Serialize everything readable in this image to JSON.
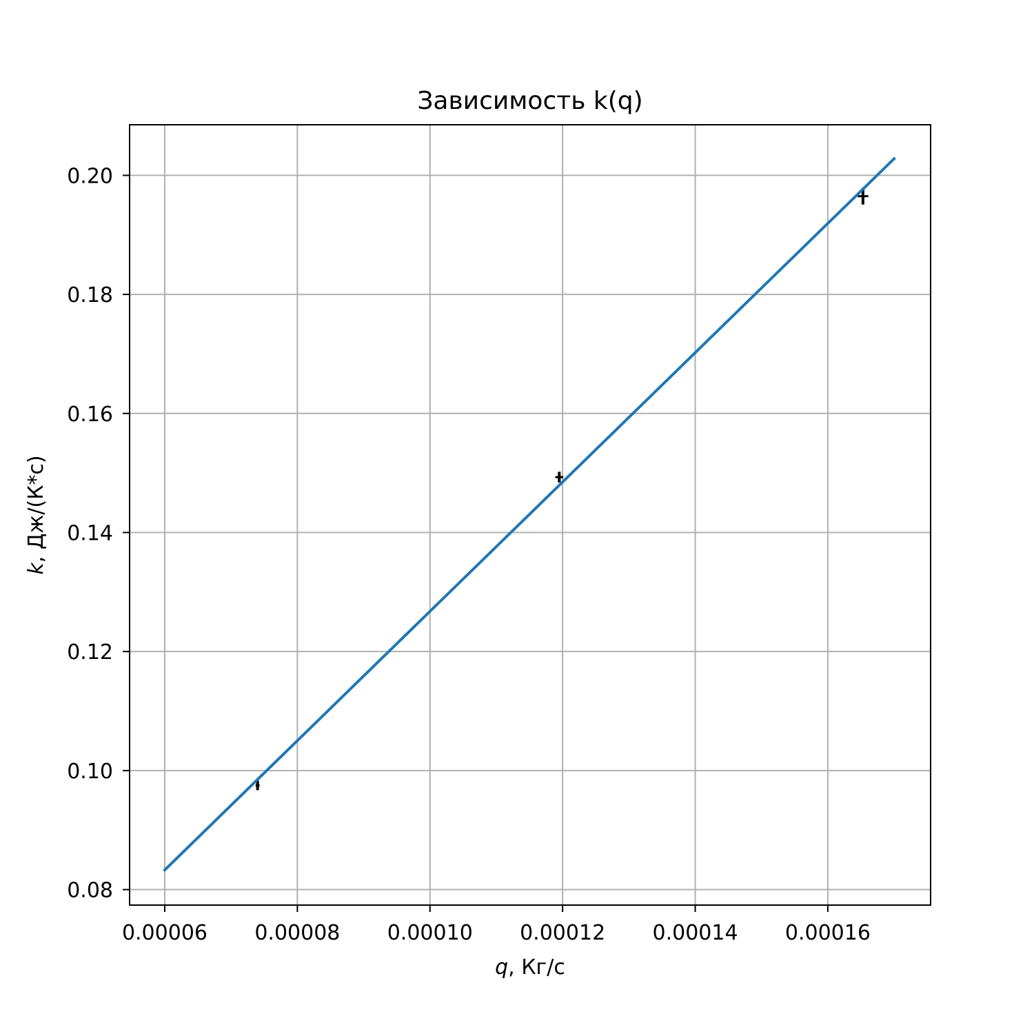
{
  "chart_data": {
    "type": "line",
    "title": "Зависимость k(q)",
    "xlabel": "q, Кг/с",
    "ylabel": "k, Дж/(К*с)",
    "xlabel_var": "q",
    "xlabel_rest": ", Кг/с",
    "ylabel_var": "k",
    "ylabel_rest": ", Дж/(К*с)",
    "xlim": [
      5.47e-05,
      0.0001755
    ],
    "ylim": [
      0.0774,
      0.2085
    ],
    "grid": true,
    "x_ticks": [
      6e-05,
      8e-05,
      0.0001,
      0.00012,
      0.00014,
      0.00016
    ],
    "x_tick_labels": [
      "0.00006",
      "0.00008",
      "0.00010",
      "0.00012",
      "0.00014",
      "0.00016"
    ],
    "y_ticks": [
      0.08,
      0.1,
      0.12,
      0.14,
      0.16,
      0.18,
      0.2
    ],
    "y_tick_labels": [
      "0.08",
      "0.10",
      "0.12",
      "0.14",
      "0.16",
      "0.18",
      "0.20"
    ],
    "series": [
      {
        "kind": "errorbar",
        "color": "#000000",
        "points": [
          {
            "x": 7.4e-05,
            "y": 0.0975,
            "yerr": 0.0008,
            "xerr": 3e-07
          },
          {
            "x": 0.0001195,
            "y": 0.1493,
            "yerr": 0.0009,
            "xerr": 6e-07
          },
          {
            "x": 0.0001653,
            "y": 0.1965,
            "yerr": 0.0014,
            "xerr": 8e-07
          }
        ]
      },
      {
        "kind": "fit-line",
        "color": "#1f77b4",
        "x": [
          6e-05,
          0.00017
        ],
        "y": [
          0.0833,
          0.2028
        ]
      }
    ]
  }
}
